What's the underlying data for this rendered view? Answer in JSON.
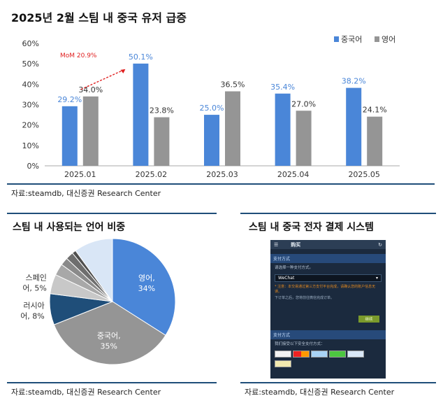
{
  "title_main": "2025년 2월 스팀 내 중국 유저 급증",
  "source_main": "자료:steamdb, 대신증권 Research Center",
  "title_pie": "스팀 내 사용되는 언어 비중",
  "source_pie": "자료:steamdb, 대신증권 Research Center",
  "title_pay": "스팀 내 중국 전자 결제 시스템",
  "source_pay": "자료:steamdb, 대신증권 Research Center",
  "colors": {
    "chinese": "#4a86d8",
    "english": "#959595",
    "rule": "#1f4e79",
    "arrow": "#e02020"
  },
  "chart_data": [
    {
      "type": "bar",
      "title": "2025년 2월 스팀 내 중국 유저 급증",
      "categories": [
        "2025.01",
        "2025.02",
        "2025.03",
        "2025.04",
        "2025.05"
      ],
      "series": [
        {
          "name": "중국어",
          "values": [
            29.2,
            50.1,
            25.0,
            35.4,
            38.2
          ],
          "labels": [
            "29.2%",
            "50.1%",
            "25.0%",
            "35.4%",
            "38.2%"
          ]
        },
        {
          "name": "영어",
          "values": [
            34.0,
            23.8,
            36.5,
            27.0,
            24.1
          ],
          "labels": [
            "34.0%",
            "23.8%",
            "36.5%",
            "27.0%",
            "24.1%"
          ]
        }
      ],
      "ylim": [
        0,
        60
      ],
      "yticks": [
        "0%",
        "10%",
        "20%",
        "30%",
        "40%",
        "50%",
        "60%"
      ],
      "annotation": "MoM 20.9%",
      "legend": "top-right",
      "grid": false
    },
    {
      "type": "pie",
      "title": "스팀 내 사용되는 언어 비중",
      "slices": [
        {
          "name": "영어",
          "value": 34,
          "label_name": "영어,",
          "label_pct": "34%",
          "color": "#4a86d8"
        },
        {
          "name": "중국어",
          "value": 35,
          "label_name": "중국어,",
          "label_pct": "35%",
          "color": "#959595"
        },
        {
          "name": "러시아어",
          "value": 8,
          "label_name": "러시아",
          "label_pct": "어, 8%",
          "color": "#1f4e79"
        },
        {
          "name": "스페인어",
          "value": 5,
          "label_name": "스페인",
          "label_pct": "어, 5%",
          "color": "#c8c8c8"
        },
        {
          "name": "",
          "value": 3,
          "color": "#a8a8a8"
        },
        {
          "name": "",
          "value": 2,
          "color": "#8a8a8a"
        },
        {
          "name": "",
          "value": 2,
          "color": "#6e6e6e"
        },
        {
          "name": "",
          "value": 1,
          "color": "#4f4f4f"
        },
        {
          "name": "",
          "value": 10,
          "color": "#d9e6f6"
        }
      ]
    }
  ],
  "phone": {
    "header": "购买",
    "section1": "支付方式",
    "prompt": "请选择一种支付方式。",
    "selected": "WeChat",
    "warning": "* 注意：本交易通过第三方支付平台完成，请确认您的账户信息无误。",
    "note": "下订单之后，您将前往微信完成订单。",
    "button": "继续",
    "section2": "支付方式",
    "accepted": "我们接受以下安全支付方式："
  }
}
